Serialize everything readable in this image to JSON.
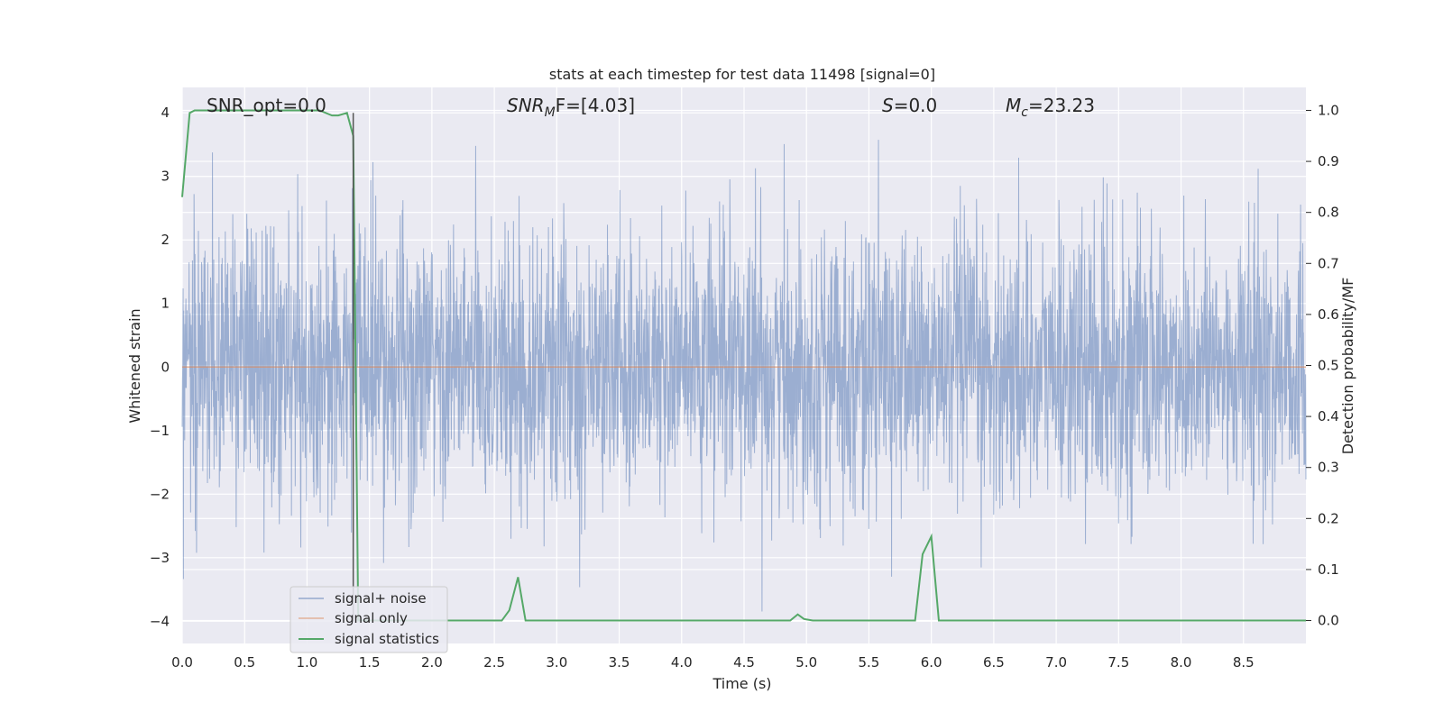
{
  "chart_data": {
    "type": "line",
    "title": "stats at each timestep for test data 11498 [signal=0]",
    "xlabel": "Time (s)",
    "ylabel_left": "Whitened strain",
    "ylabel_right": "Detection probability/MF",
    "xlim": [
      0.0,
      9.0
    ],
    "ylim_left": [
      -4.35,
      4.4
    ],
    "ylim_right": [
      -0.045,
      1.045
    ],
    "x_ticks": [
      "0.0",
      "0.5",
      "1.0",
      "1.5",
      "2.0",
      "2.5",
      "3.0",
      "3.5",
      "4.0",
      "4.5",
      "5.0",
      "5.5",
      "6.0",
      "6.5",
      "7.0",
      "7.5",
      "8.0",
      "8.5"
    ],
    "y_ticks_left": [
      "−4",
      "−3",
      "−2",
      "−1",
      "0",
      "1",
      "2",
      "3",
      "4"
    ],
    "y_ticks_right": [
      "0.0",
      "0.1",
      "0.2",
      "0.3",
      "0.4",
      "0.5",
      "0.6",
      "0.7",
      "0.8",
      "0.9",
      "1.0"
    ],
    "grid": true,
    "legend_placement": "lower-left",
    "colors": {
      "noise": "#4c72b0",
      "signal": "#dd8452",
      "stats": "#55a868",
      "vline": "#555555",
      "background": "#eaeaf2",
      "grid": "#ffffff"
    },
    "series": [
      {
        "name": "signal+ noise",
        "axis": "left",
        "description_values": "whitened strain noise, roughly within ±2.5 with peaks near ±4"
      },
      {
        "name": "signal only",
        "axis": "left",
        "x": [
          0.0,
          9.0
        ],
        "y": [
          0.0,
          0.0
        ]
      },
      {
        "name": "signal statistics",
        "axis": "right",
        "x": [
          0.0,
          0.06,
          0.1,
          0.2,
          0.5,
          0.9,
          1.1,
          1.2,
          1.25,
          1.32,
          1.37,
          1.41,
          1.45,
          1.5,
          2.0,
          2.5,
          2.56,
          2.62,
          2.69,
          2.75,
          3.0,
          4.0,
          4.5,
          4.87,
          4.93,
          4.98,
          5.05,
          5.5,
          5.87,
          5.93,
          6.0,
          6.06,
          6.12,
          7.0,
          8.0,
          9.0
        ],
        "y": [
          0.83,
          0.995,
          1.0,
          1.0,
          1.0,
          1.0,
          1.0,
          0.99,
          0.99,
          0.995,
          0.95,
          0.0,
          0.0,
          0.0,
          0.0,
          0.0,
          0.0,
          0.02,
          0.085,
          0.0,
          0.0,
          0.0,
          0.0,
          0.0,
          0.012,
          0.003,
          0.0,
          0.0,
          0.0,
          0.13,
          0.165,
          0.0,
          0.0,
          0.0,
          0.0,
          0.0
        ]
      }
    ],
    "vline_x": 1.37,
    "annotations": {
      "snr_opt": "SNR_opt=0.0",
      "snr_mf_prefix": "SNR",
      "snr_mf_sub": "M",
      "snr_mf_suffix": "F=[4.03]",
      "s_prefix": "S",
      "s_suffix": "=0.0",
      "mc_prefix": "M",
      "mc_sub": "c",
      "mc_suffix": "=23.23"
    },
    "legend": [
      "signal+ noise",
      "signal only",
      "signal statistics"
    ]
  }
}
